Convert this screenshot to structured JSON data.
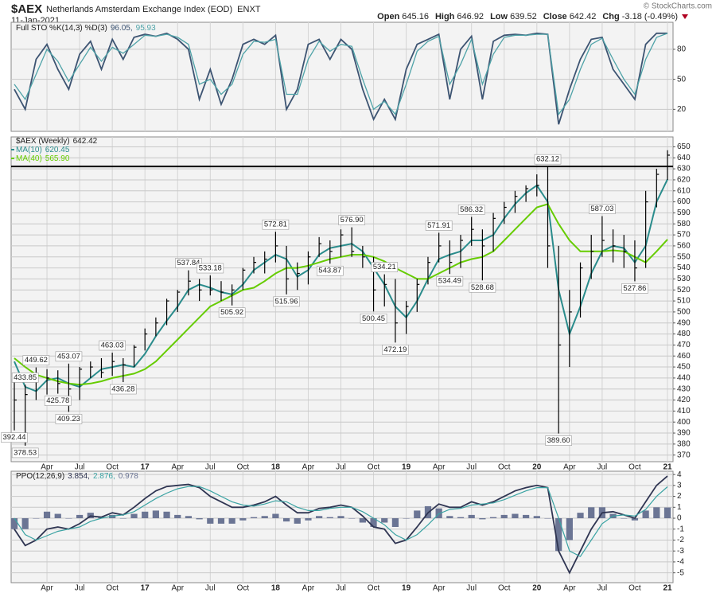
{
  "header": {
    "symbol": "$AEX",
    "name": "Netherlands Amsterdam Exchange Index (EOD)",
    "exchange": "ENXT",
    "date": "11-Jan-2021",
    "quote": [
      {
        "label": "Open",
        "value": 645.16
      },
      {
        "label": "High",
        "value": 646.92
      },
      {
        "label": "Low",
        "value": 639.52
      },
      {
        "label": "Close",
        "value": 642.42
      },
      {
        "label": "Chg",
        "value": -3.18
      }
    ],
    "change_pct": {
      "value": -0.49,
      "label": "(-0.49%)"
    }
  },
  "watermark": "© StockCharts.com",
  "chart_data": [
    {
      "type": "stochastic",
      "title": "Full STO %K(14,3) %D(3)",
      "ylim": [
        -2,
        107
      ],
      "yticks": [
        20,
        50,
        80
      ],
      "grid": true,
      "series": [
        {
          "color": "#3d5472",
          "last": {
            "value": 96.05,
            "label": "96.05,"
          },
          "values": [
            40,
            20,
            70,
            85,
            60,
            40,
            75,
            88,
            60,
            90,
            70,
            92,
            95,
            93,
            96,
            90,
            80,
            30,
            60,
            25,
            50,
            85,
            90,
            85,
            94,
            20,
            40,
            85,
            90,
            70,
            90,
            80,
            40,
            10,
            30,
            10,
            60,
            85,
            90,
            95,
            30,
            80,
            93,
            30,
            88,
            94,
            95,
            94,
            96,
            95,
            5,
            40,
            70,
            90,
            92,
            60,
            45,
            30,
            85,
            96,
            96.05
          ]
        },
        {
          "color": "#4fa3a8",
          "last": 95.93,
          "values": [
            45,
            30,
            55,
            80,
            68,
            48,
            65,
            82,
            68,
            82,
            76,
            85,
            94,
            93,
            95,
            92,
            85,
            45,
            50,
            35,
            45,
            75,
            88,
            87,
            90,
            35,
            35,
            70,
            88,
            78,
            85,
            83,
            50,
            20,
            28,
            15,
            45,
            78,
            88,
            93,
            45,
            65,
            90,
            45,
            75,
            92,
            94,
            94,
            95,
            95,
            15,
            30,
            60,
            85,
            91,
            70,
            50,
            35,
            70,
            92,
            95.93
          ]
        }
      ]
    },
    {
      "type": "ohlc",
      "name": "$AEX (Weekly)",
      "last": 642.42,
      "color": "#000000",
      "grid": true,
      "categories": [
        null,
        null,
        null,
        "Apr",
        null,
        null,
        "Jul",
        null,
        null,
        "Oct",
        null,
        null,
        "17",
        null,
        null,
        "Apr",
        null,
        null,
        "Jul",
        null,
        null,
        "Oct",
        null,
        null,
        "18",
        null,
        null,
        "Apr",
        null,
        null,
        "Jul",
        null,
        null,
        "Oct",
        null,
        null,
        "19",
        null,
        null,
        "Apr",
        null,
        null,
        "Jul",
        null,
        null,
        "Oct",
        null,
        null,
        "20",
        null,
        null,
        "Apr",
        null,
        null,
        "Jul",
        null,
        null,
        "Oct",
        null,
        null,
        "21"
      ],
      "high": [
        445,
        433.85,
        449.62,
        448,
        447,
        453.07,
        450,
        455,
        458,
        463.03,
        458,
        470,
        485,
        495,
        512,
        520,
        537.84,
        530,
        533.18,
        528,
        525,
        540,
        550,
        555,
        572.81,
        560,
        545,
        555,
        568,
        565,
        575,
        576.9,
        560,
        550,
        534.21,
        530,
        510,
        530,
        550,
        571.91,
        565,
        570,
        586.32,
        575,
        590,
        600,
        610,
        615,
        625,
        632.12,
        560,
        520,
        545,
        570,
        587.03,
        575,
        570,
        565,
        610,
        630,
        646.92
      ],
      "low": [
        392.44,
        378.53,
        420,
        425,
        425.78,
        409.23,
        420,
        440,
        440,
        442,
        436.28,
        450,
        465,
        478,
        488,
        500,
        515,
        510,
        515,
        510,
        505.92,
        520,
        535,
        535,
        545,
        515.96,
        520,
        525,
        550,
        543.87,
        550,
        550,
        540,
        500.45,
        505,
        472.19,
        480,
        500,
        525,
        545,
        534.49,
        540,
        560,
        528.68,
        555,
        580,
        590,
        600,
        605,
        540,
        389.6,
        450,
        495,
        530,
        550,
        545,
        540,
        527.86,
        540,
        595,
        620
      ],
      "close": [
        420,
        425,
        440,
        440,
        435,
        430,
        448,
        450,
        445,
        455,
        452,
        468,
        480,
        490,
        510,
        518,
        528,
        520,
        520,
        518,
        520,
        538,
        545,
        548,
        560,
        530,
        535,
        550,
        562,
        555,
        570,
        555,
        550,
        520,
        525,
        490,
        505,
        525,
        545,
        560,
        545,
        565,
        575,
        560,
        585,
        595,
        605,
        612,
        615,
        560,
        470,
        500,
        540,
        555,
        565,
        560,
        555,
        540,
        600,
        625,
        642.42
      ],
      "peaks": [
        null,
        433.85,
        449.62,
        null,
        null,
        453.07,
        null,
        null,
        null,
        463.03,
        null,
        null,
        null,
        null,
        null,
        null,
        537.84,
        null,
        533.18,
        null,
        null,
        null,
        null,
        null,
        572.81,
        null,
        null,
        null,
        null,
        null,
        null,
        {
          "value": 576.9,
          "label": "576.90"
        },
        null,
        null,
        534.21,
        null,
        null,
        null,
        null,
        571.91,
        null,
        null,
        586.32,
        null,
        null,
        null,
        null,
        null,
        null,
        632.12,
        null,
        null,
        null,
        null,
        587.03,
        null,
        null,
        null,
        null,
        null,
        null
      ],
      "troughs": [
        392.44,
        378.53,
        null,
        null,
        425.78,
        409.23,
        null,
        null,
        null,
        null,
        436.28,
        null,
        null,
        null,
        null,
        null,
        null,
        null,
        null,
        null,
        505.92,
        null,
        null,
        null,
        null,
        515.96,
        null,
        null,
        null,
        543.87,
        null,
        null,
        null,
        500.45,
        null,
        472.19,
        null,
        null,
        null,
        null,
        534.49,
        null,
        null,
        528.68,
        null,
        null,
        null,
        null,
        null,
        null,
        {
          "value": 389.6,
          "label": "389.60"
        },
        null,
        null,
        null,
        null,
        null,
        null,
        527.86,
        null,
        null,
        null
      ],
      "hline": 632.12,
      "ylim": [
        364,
        659
      ],
      "yticks": [
        370,
        380,
        390,
        400,
        410,
        420,
        430,
        440,
        450,
        460,
        470,
        480,
        490,
        500,
        510,
        520,
        530,
        540,
        550,
        560,
        570,
        580,
        590,
        600,
        610,
        620,
        630,
        640,
        650
      ],
      "series": [
        {
          "name": "MA(10)",
          "color": "#2a8c8c",
          "last": 620.45,
          "values": [
            455,
            432,
            428,
            438,
            440,
            435,
            432,
            440,
            448,
            450,
            452,
            450,
            462,
            478,
            492,
            505,
            520,
            525,
            522,
            518,
            516,
            525,
            538,
            545,
            552,
            548,
            532,
            538,
            552,
            558,
            560,
            562,
            555,
            540,
            525,
            505,
            495,
            510,
            530,
            548,
            552,
            555,
            565,
            565,
            570,
            585,
            598,
            608,
            615,
            600,
            520,
            480,
            505,
            535,
            555,
            560,
            558,
            545,
            560,
            600,
            620.45
          ]
        },
        {
          "name": "MA(40)",
          "color": "#66cc00",
          "last": {
            "value": 565.9,
            "label": "565.90"
          },
          "values": [
            458,
            450,
            443,
            440,
            437,
            435,
            434,
            435,
            437,
            440,
            442,
            444,
            448,
            455,
            465,
            475,
            485,
            495,
            505,
            510,
            515,
            520,
            522,
            528,
            535,
            540,
            540,
            542,
            545,
            548,
            550,
            552,
            552,
            550,
            546,
            540,
            535,
            530,
            530,
            535,
            540,
            545,
            548,
            550,
            555,
            565,
            575,
            585,
            595,
            598,
            580,
            565,
            555,
            555,
            555,
            556,
            555,
            550,
            545,
            555,
            565.9
          ]
        }
      ]
    },
    {
      "type": "ppo",
      "title": "PPO(12,26,9)",
      "grid": true,
      "categories": [
        null,
        null,
        null,
        "Apr",
        null,
        null,
        "Jul",
        null,
        null,
        "Oct",
        null,
        null,
        "17",
        null,
        null,
        "Apr",
        null,
        null,
        "Jul",
        null,
        null,
        "Oct",
        null,
        null,
        "18",
        null,
        null,
        "Apr",
        null,
        null,
        "Jul",
        null,
        null,
        "Oct",
        null,
        null,
        "19",
        null,
        null,
        "Apr",
        null,
        null,
        "Jul",
        null,
        null,
        "Oct",
        null,
        null,
        "20",
        null,
        null,
        "Apr",
        null,
        null,
        "Jul",
        null,
        null,
        "Oct",
        null,
        null,
        "21"
      ],
      "ylim": [
        -5.9,
        4.3
      ],
      "yticks": [
        -5,
        -4,
        -3,
        -2,
        -1,
        0,
        1,
        2,
        3,
        4
      ],
      "series": [
        {
          "color": "#2f3552",
          "last": {
            "value": 3.854,
            "label": "3.854,"
          },
          "values": [
            -1,
            -2.5,
            -2,
            -1,
            -0.8,
            -1,
            -0.5,
            0.2,
            0.1,
            0.5,
            0.3,
            1,
            1.8,
            2.5,
            2.9,
            3,
            3.1,
            2.8,
            2,
            1.5,
            1,
            1,
            1.2,
            1.5,
            2,
            1.2,
            0.5,
            0.5,
            0.9,
            1,
            1.2,
            1,
            0.2,
            -0.8,
            -1,
            -2.3,
            -2,
            -0.8,
            0.5,
            1.3,
            1,
            1,
            1.5,
            1.2,
            1.5,
            2,
            2.5,
            2.8,
            3,
            2.8,
            -3,
            -5,
            -3,
            -1,
            0.5,
            0.6,
            0.3,
            0,
            1.5,
            3,
            3.854
          ]
        },
        {
          "color": "#3aa3a3",
          "last": {
            "value": 2.876,
            "label": "2.876,"
          },
          "values": [
            0,
            -1.5,
            -2,
            -1.6,
            -1.2,
            -1,
            -0.8,
            -0.3,
            0,
            0.2,
            0.3,
            0.6,
            1.2,
            1.8,
            2.3,
            2.7,
            2.9,
            2.9,
            2.5,
            2,
            1.5,
            1.2,
            1.1,
            1.3,
            1.6,
            1.5,
            1,
            0.7,
            0.7,
            0.9,
            1,
            1,
            0.6,
            0,
            -0.6,
            -1.5,
            -2,
            -1.5,
            -0.6,
            0.4,
            0.8,
            0.9,
            1.2,
            1.3,
            1.4,
            1.7,
            2.1,
            2.5,
            2.8,
            2.8,
            0,
            -3,
            -3.5,
            -2,
            -0.5,
            0.2,
            0.3,
            0.2,
            0.8,
            2,
            2.876
          ]
        }
      ],
      "histogram": {
        "color": "#6b7594",
        "last": 0.978,
        "values": [
          -1,
          -1,
          0,
          0.6,
          0.4,
          0,
          0.3,
          0.5,
          0.1,
          0.3,
          0,
          0.4,
          0.6,
          0.7,
          0.6,
          0.3,
          0.2,
          -0.1,
          -0.5,
          -0.5,
          -0.5,
          -0.2,
          0.1,
          0.2,
          0.4,
          -0.3,
          -0.5,
          -0.2,
          0.2,
          0.1,
          0.2,
          0,
          -0.4,
          -0.8,
          -0.4,
          -0.8,
          0,
          0.7,
          1.1,
          0.9,
          0.2,
          0.1,
          0.3,
          -0.1,
          0.1,
          0.3,
          0.4,
          0.3,
          0.2,
          0,
          -3,
          -2,
          0.5,
          1,
          1,
          0.4,
          0,
          -0.2,
          0.7,
          1,
          0.978
        ]
      }
    }
  ]
}
